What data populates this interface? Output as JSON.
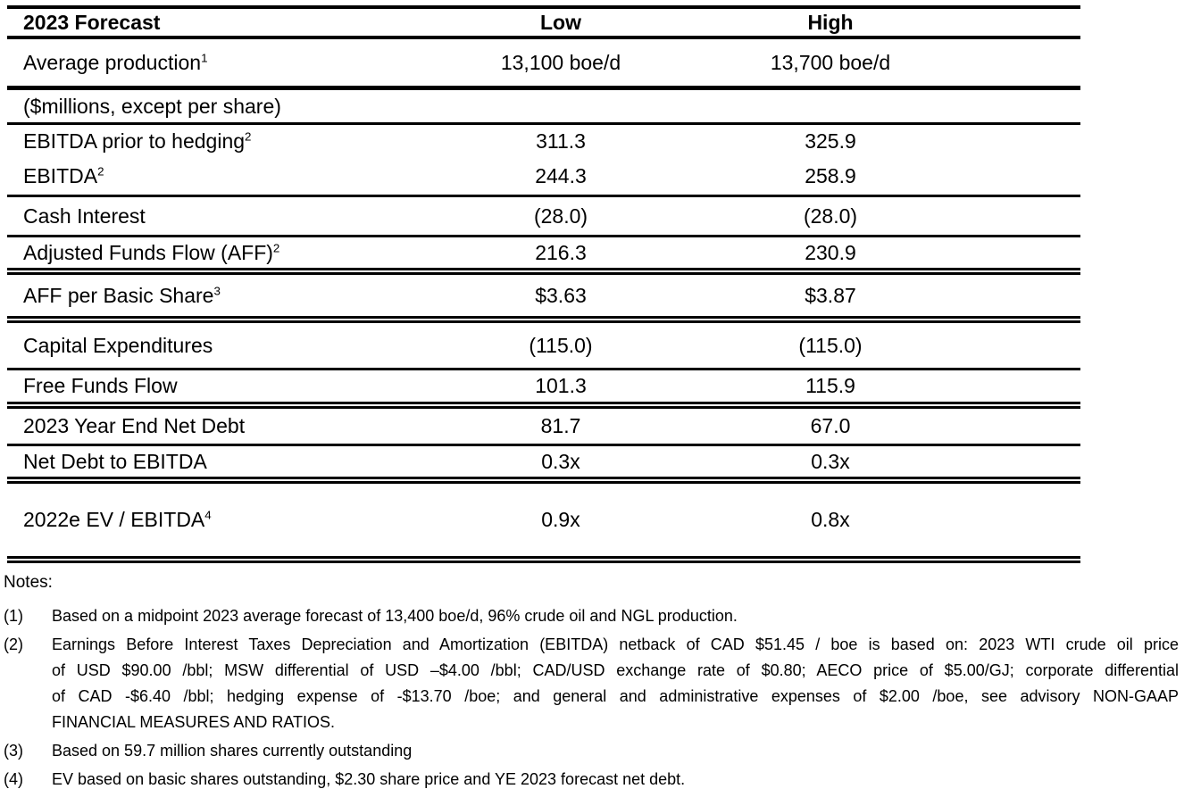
{
  "table": {
    "header": {
      "label": "2023 Forecast",
      "low": "Low",
      "high": "High"
    },
    "rows": [
      {
        "label": "Average production",
        "sup": "1",
        "low": "13,100 boe/d",
        "high": "13,700 boe/d"
      },
      {
        "label": "($millions, except per share)",
        "sup": "",
        "span": true,
        "low": "",
        "high": ""
      },
      {
        "label": "EBITDA prior to hedging",
        "sup": "2",
        "low": "311.3",
        "high": "325.9"
      },
      {
        "label": "EBITDA",
        "sup": "2",
        "low": "244.3",
        "high": "258.9"
      },
      {
        "label": "Cash Interest",
        "sup": "",
        "low": "(28.0)",
        "high": "(28.0)"
      },
      {
        "label": "Adjusted Funds Flow (AFF)",
        "sup": "2",
        "low": "216.3",
        "high": "230.9"
      },
      {
        "label": "AFF per Basic Share",
        "sup": "3",
        "low": "$3.63",
        "high": "$3.87"
      },
      {
        "label": "Capital Expenditures",
        "sup": "",
        "low": "(115.0)",
        "high": "(115.0)"
      },
      {
        "label": "Free Funds Flow",
        "sup": "",
        "low": "101.3",
        "high": "115.9"
      },
      {
        "label": "2023 Year End Net Debt",
        "sup": "",
        "low": "81.7",
        "high": "67.0"
      },
      {
        "label": "Net Debt to EBITDA",
        "sup": "",
        "low": "0.3x",
        "high": "0.3x"
      },
      {
        "label": "2022e EV / EBITDA",
        "sup": "4",
        "low": "0.9x",
        "high": "0.8x"
      }
    ]
  },
  "notes": {
    "heading": "Notes:",
    "items": [
      {
        "num": "(1)",
        "lines": [
          "Based on a midpoint 2023 average forecast of 13,400 boe/d, 96% crude oil and NGL production."
        ]
      },
      {
        "num": "(2)",
        "lines": [
          "Earnings Before Interest Taxes Depreciation and Amortization (EBITDA) netback of CAD $51.45 / boe is based on: 2023 WTI crude oil price",
          "of USD $90.00 /bbl; MSW differential of USD –$4.00 /bbl; CAD/USD exchange rate of $0.80; AECO price of $5.00/GJ; corporate differential",
          "of CAD -$6.40 /bbl; hedging expense of -$13.70 /boe; and general and administrative expenses of $2.00 /boe, see advisory NON-GAAP",
          "FINANCIAL MEASURES AND RATIOS."
        ]
      },
      {
        "num": "(3)",
        "lines": [
          "Based on 59.7 million shares currently outstanding"
        ]
      },
      {
        "num": "(4)",
        "lines": [
          "EV based on basic shares outstanding, $2.30 share price and YE 2023 forecast net debt."
        ]
      }
    ]
  },
  "colors": {
    "text": "#000000",
    "background": "#ffffff",
    "rule": "#000000"
  }
}
